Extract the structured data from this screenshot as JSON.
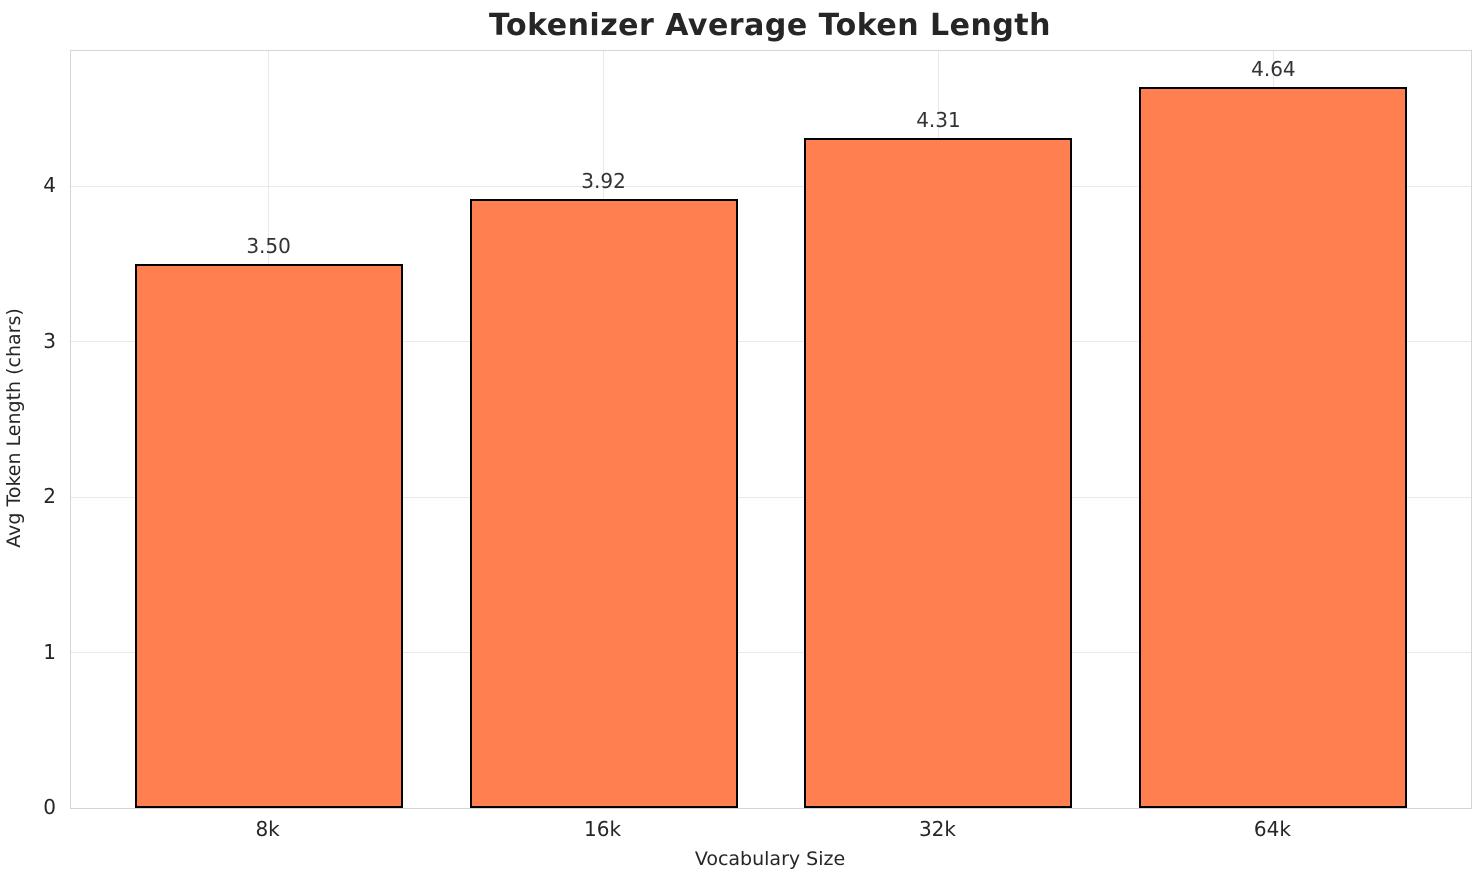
{
  "chart_data": {
    "type": "bar",
    "title": "Tokenizer Average Token Length",
    "categories": [
      "8k",
      "16k",
      "32k",
      "64k"
    ],
    "values": [
      3.5,
      3.92,
      4.31,
      4.64
    ],
    "value_labels": [
      "3.50",
      "3.92",
      "4.31",
      "4.64"
    ],
    "xlabel": "Vocabulary Size",
    "ylabel": "Avg Token Length (chars)",
    "ylim": [
      0,
      4.872
    ],
    "yticks": [
      0,
      1,
      2,
      3,
      4
    ],
    "grid": true,
    "legend": null,
    "bar_color": "#FF7F50",
    "bar_edge_color": "#000000",
    "grid_color": "#e9e9e9",
    "spine_color": "#d5d5d5",
    "text_color": "#262626"
  }
}
